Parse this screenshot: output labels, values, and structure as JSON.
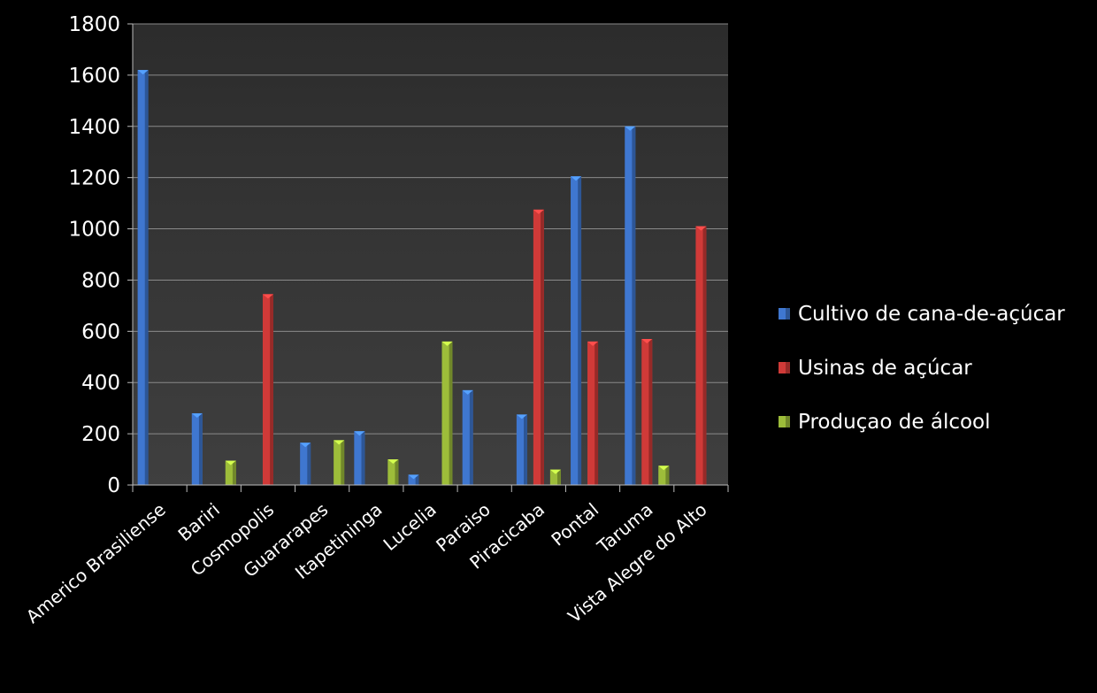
{
  "chart_data": {
    "type": "bar",
    "categories": [
      "Americo Brasiliense",
      "Bariri",
      "Cosmopolis",
      "Guararapes",
      "Itapetininga",
      "Lucelia",
      "Paraiso",
      "Piracicaba",
      "Pontal",
      "Taruma",
      "Vista Alegre do Alto"
    ],
    "series": [
      {
        "name": "Cultivo de cana-de-açúcar",
        "color": "#3f77d0",
        "values": [
          1620,
          280,
          0,
          165,
          210,
          40,
          370,
          275,
          1205,
          1400,
          0
        ]
      },
      {
        "name": "Usinas de açúcar",
        "color": "#d03a38",
        "values": [
          0,
          0,
          745,
          0,
          0,
          0,
          0,
          1075,
          560,
          570,
          1010
        ]
      },
      {
        "name": "Produçao de álcool",
        "color": "#9dbd3a",
        "values": [
          0,
          95,
          0,
          175,
          100,
          560,
          0,
          60,
          0,
          75,
          0
        ]
      }
    ],
    "ylim": [
      0,
      1800
    ],
    "yticks": [
      0,
      200,
      400,
      600,
      800,
      1000,
      1200,
      1400,
      1600,
      1800
    ],
    "grid": true,
    "legend": "right"
  }
}
